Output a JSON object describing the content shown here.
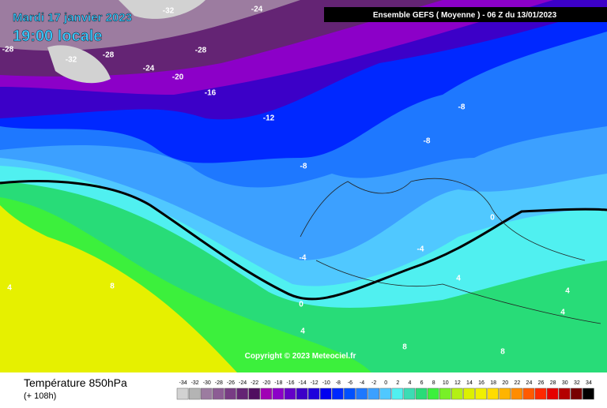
{
  "header": {
    "date": "Mardi 17 janvier 2023",
    "time": "19:00 locale",
    "model": "Ensemble GEFS  ( Moyenne )  -  06 Z du 13/01/2023",
    "copyright": "Copyright © 2023 Meteociel.fr"
  },
  "contour_labels": [
    -32,
    -24,
    -28,
    -32,
    -28,
    -28,
    -24,
    -20,
    -16,
    -12,
    -8,
    -8,
    -8,
    0,
    -4,
    -4,
    4,
    8,
    4,
    4,
    4,
    0,
    4,
    8,
    8
  ],
  "legend": {
    "title": "Température 850hPa",
    "subtitle": "(+ 108h)",
    "values": [
      -34,
      -32,
      -30,
      -28,
      -26,
      -24,
      -22,
      -20,
      -18,
      -16,
      -14,
      -12,
      -10,
      -8,
      -6,
      -4,
      -2,
      0,
      2,
      4,
      6,
      8,
      10,
      12,
      14,
      16,
      18,
      20,
      22,
      24,
      26,
      28,
      30,
      32,
      34
    ],
    "colors": [
      "#d2d2d2",
      "#b4b4b4",
      "#9c7ca0",
      "#8c5c94",
      "#783c84",
      "#642474",
      "#500e60",
      "#a000b4",
      "#8c00c8",
      "#6400c8",
      "#3c00c8",
      "#1e00dc",
      "#0000f0",
      "#0028ff",
      "#0050ff",
      "#1e78ff",
      "#3ca0ff",
      "#50c8ff",
      "#50f0f0",
      "#3cdcb4",
      "#28dc78",
      "#3cf03c",
      "#78f028",
      "#b4f014",
      "#dcf000",
      "#f0f000",
      "#ffdc00",
      "#ffb400",
      "#ff8c00",
      "#ff5a00",
      "#ff2800",
      "#e60000",
      "#b40000",
      "#780000",
      "#000000"
    ]
  }
}
